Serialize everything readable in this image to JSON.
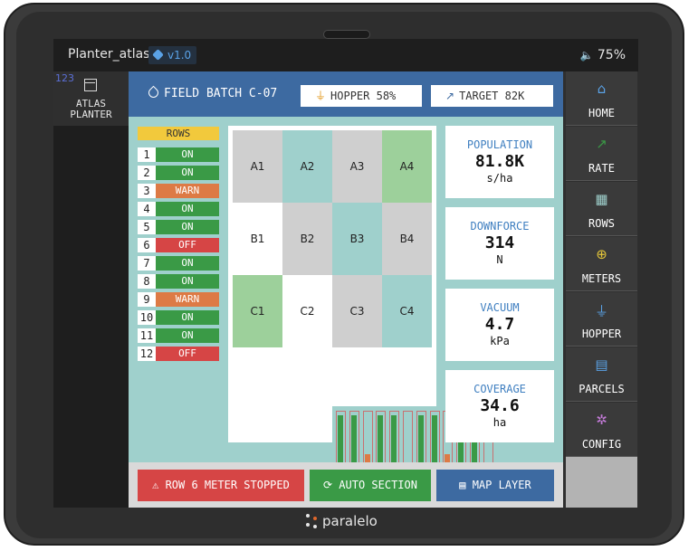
{
  "statusbar": {
    "app_title": "Planter_atlas",
    "version": "v1.0",
    "volume_icon": "speaker-icon",
    "battery": "75%"
  },
  "logo": {
    "number": "123",
    "line1": "ATLAS",
    "line2": "PLANTER"
  },
  "header": {
    "batch": "FIELD BATCH C-07",
    "hopper": "HOPPER 58%",
    "target": "TARGET 82K"
  },
  "rows": {
    "title": "ROWS",
    "items": [
      {
        "num": "1",
        "status": "ON"
      },
      {
        "num": "2",
        "status": "ON"
      },
      {
        "num": "3",
        "status": "WARN"
      },
      {
        "num": "4",
        "status": "ON"
      },
      {
        "num": "5",
        "status": "ON"
      },
      {
        "num": "6",
        "status": "OFF"
      },
      {
        "num": "7",
        "status": "ON"
      },
      {
        "num": "8",
        "status": "ON"
      },
      {
        "num": "9",
        "status": "WARN"
      },
      {
        "num": "10",
        "status": "ON"
      },
      {
        "num": "11",
        "status": "ON"
      },
      {
        "num": "12",
        "status": "OFF"
      }
    ]
  },
  "grid": {
    "cells": [
      {
        "label": "A1",
        "color": "#cfcfcf"
      },
      {
        "label": "A2",
        "color": "#9fd0cc"
      },
      {
        "label": "A3",
        "color": "#cfcfcf"
      },
      {
        "label": "A4",
        "color": "#9dd09b"
      },
      {
        "label": "B1",
        "color": "#ffffff"
      },
      {
        "label": "B2",
        "color": "#cfcfcf"
      },
      {
        "label": "B3",
        "color": "#9fd0cc"
      },
      {
        "label": "B4",
        "color": "#cfcfcf"
      },
      {
        "label": "C1",
        "color": "#9dd09b"
      },
      {
        "label": "C2",
        "color": "#ffffff"
      },
      {
        "label": "C3",
        "color": "#cfcfcf"
      },
      {
        "label": "C4",
        "color": "#9fd0cc"
      }
    ]
  },
  "row_bars": [
    {
      "fill": 0.98,
      "color": "#3a9a46"
    },
    {
      "fill": 0.98,
      "color": "#3a9a46"
    },
    {
      "fill": 0.45,
      "color": "#dd7a45"
    },
    {
      "fill": 0.98,
      "color": "#3a9a46"
    },
    {
      "fill": 0.98,
      "color": "#3a9a46"
    },
    {
      "fill": 0.0,
      "color": "#3a9a46"
    },
    {
      "fill": 0.98,
      "color": "#3a9a46"
    },
    {
      "fill": 0.98,
      "color": "#3a9a46"
    },
    {
      "fill": 0.45,
      "color": "#dd7a45"
    },
    {
      "fill": 0.98,
      "color": "#3a9a46"
    },
    {
      "fill": 0.98,
      "color": "#3a9a46"
    },
    {
      "fill": 0.0,
      "color": "#3a9a46"
    }
  ],
  "metrics": [
    {
      "label": "POPULATION",
      "value": "81.8K",
      "unit": "s/ha"
    },
    {
      "label": "DOWNFORCE",
      "value": "314",
      "unit": "N"
    },
    {
      "label": "VACUUM",
      "value": "4.7",
      "unit": "kPa"
    },
    {
      "label": "COVERAGE",
      "value": "34.6",
      "unit": "ha"
    }
  ],
  "footer": {
    "alert": "ROW 6 METER STOPPED",
    "auto_section": "AUTO SECTION",
    "map_layer": "MAP LAYER"
  },
  "nav": [
    {
      "label": "HOME",
      "icon": "home-icon",
      "glyph": "⌂",
      "color": "#5aa2e6"
    },
    {
      "label": "RATE",
      "icon": "trend-icon",
      "glyph": "↗",
      "color": "#3a9a46"
    },
    {
      "label": "ROWS",
      "icon": "grid-icon",
      "glyph": "▦",
      "color": "#9fd0cc"
    },
    {
      "label": "METERS",
      "icon": "seed-icon",
      "glyph": "⊕",
      "color": "#e3c53a"
    },
    {
      "label": "HOPPER",
      "icon": "hopper-icon",
      "glyph": "⏚",
      "color": "#5aa2e6"
    },
    {
      "label": "PARCELS",
      "icon": "map-icon",
      "glyph": "▤",
      "color": "#5aa2e6"
    },
    {
      "label": "CONFIG",
      "icon": "gear-icon",
      "glyph": "✲",
      "color": "#c27ad6"
    }
  ],
  "brand": "paralelo",
  "colors": {
    "on": "#3a9a46",
    "warn": "#dd7a45",
    "off": "#d64545",
    "accent": "#3d6aa1"
  }
}
